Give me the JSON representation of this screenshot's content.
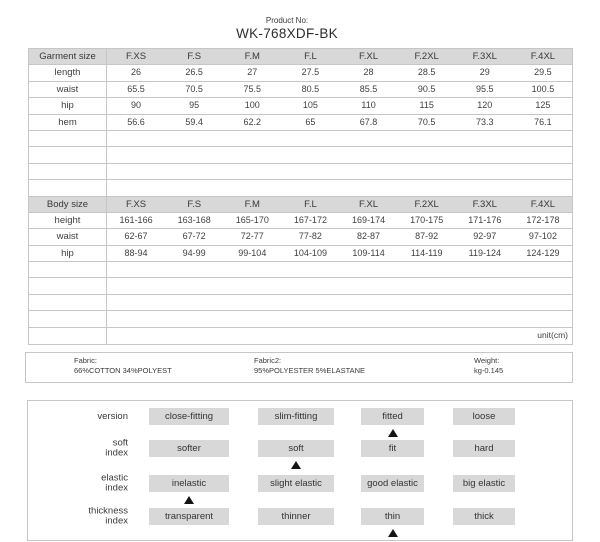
{
  "product": {
    "label": "Product No:",
    "number": "WK-768XDF-BK"
  },
  "size_table": {
    "unit_note": "unit(cm)",
    "sections": [
      {
        "header_label": "Garment size",
        "columns": [
          "F.XS",
          "F.S",
          "F.M",
          "F.L",
          "F.XL",
          "F.2XL",
          "F.3XL",
          "F.4XL"
        ],
        "rows": [
          {
            "label": "length",
            "values": [
              "26",
              "26.5",
              "27",
              "27.5",
              "28",
              "28.5",
              "29",
              "29.5"
            ]
          },
          {
            "label": "waist",
            "values": [
              "65.5",
              "70.5",
              "75.5",
              "80.5",
              "85.5",
              "90.5",
              "95.5",
              "100.5"
            ]
          },
          {
            "label": "hip",
            "values": [
              "90",
              "95",
              "100",
              "105",
              "110",
              "115",
              "120",
              "125"
            ]
          },
          {
            "label": "hem",
            "values": [
              "56.6",
              "59.4",
              "62.2",
              "65",
              "67.8",
              "70.5",
              "73.3",
              "76.1"
            ]
          }
        ],
        "empty_rows": 4
      },
      {
        "header_label": "Body size",
        "columns": [
          "F.XS",
          "F.S",
          "F.M",
          "F.L",
          "F.XL",
          "F.2XL",
          "F.3XL",
          "F.4XL"
        ],
        "rows": [
          {
            "label": "height",
            "values": [
              "161-166",
              "163-168",
              "165-170",
              "167-172",
              "169-174",
              "170-175",
              "171-176",
              "172-178"
            ]
          },
          {
            "label": "waist",
            "values": [
              "62-67",
              "67-72",
              "72-77",
              "77-82",
              "82-87",
              "87-92",
              "92-97",
              "97-102"
            ]
          },
          {
            "label": "hip",
            "values": [
              "88-94",
              "94-99",
              "99-104",
              "104-109",
              "109-114",
              "114-119",
              "119-124",
              "124-129"
            ]
          }
        ],
        "empty_rows": 4
      }
    ]
  },
  "fabric_info": {
    "items": [
      {
        "label": "Fabric:",
        "value": "66%COTTON 34%POLYEST"
      },
      {
        "label": "Fabric2:",
        "value": "95%POLYESTER 5%ELASTANE"
      },
      {
        "label": "Weight:",
        "value": "kg-0.145"
      }
    ]
  },
  "attributes": {
    "marker_icon": "triangle-up-icon",
    "rows": [
      {
        "label_lines": [
          "version"
        ],
        "options": [
          "close-fitting",
          "slim-fitting",
          "fitted",
          "loose"
        ],
        "selected_index": 2
      },
      {
        "label_lines": [
          "soft",
          "index"
        ],
        "options": [
          "softer",
          "soft",
          "fit",
          "hard"
        ],
        "selected_index": 1
      },
      {
        "label_lines": [
          "elastic",
          "index"
        ],
        "options": [
          "inelastic",
          "slight elastic",
          "good elastic",
          "big elastic"
        ],
        "selected_index": 0
      },
      {
        "label_lines": [
          "thickness",
          "index"
        ],
        "options": [
          "transparent",
          "thinner",
          "thin",
          "thick"
        ],
        "selected_index": 2
      }
    ]
  },
  "colors": {
    "header_fill": "#d8d8d8",
    "option_fill": "#d8d8d8",
    "border": "#c6c6c6",
    "marker": "#141414",
    "text": "#3f3f3f"
  }
}
